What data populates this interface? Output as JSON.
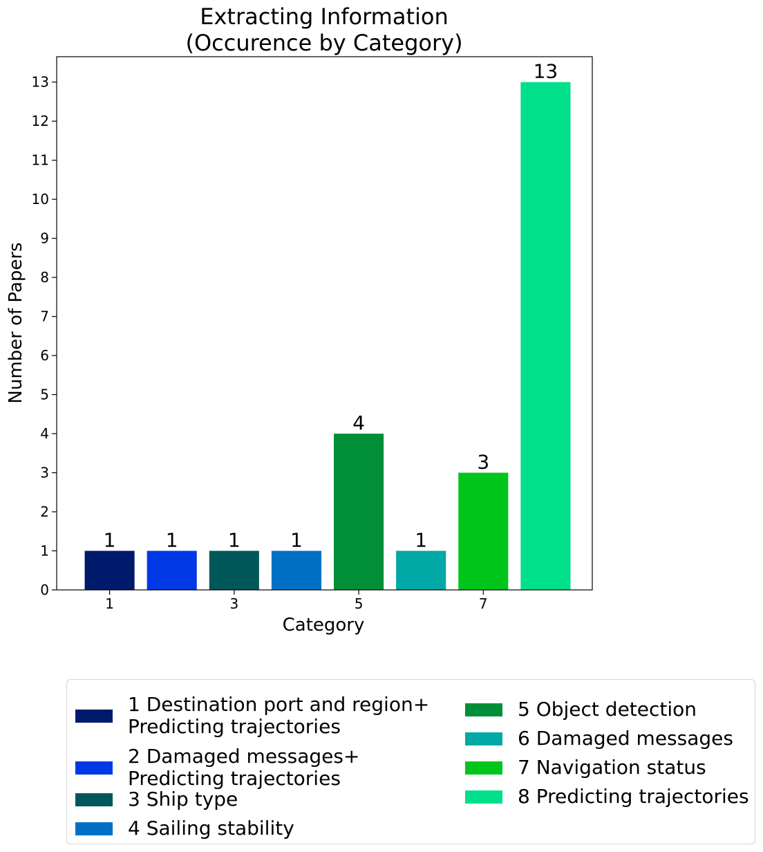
{
  "chart_data": {
    "type": "bar",
    "title": "Extracting Information\n(Occurence by Category)",
    "xlabel": "Category",
    "ylabel": "Number of Papers",
    "categories": [
      1,
      2,
      3,
      4,
      5,
      6,
      7,
      8
    ],
    "values": [
      1,
      1,
      1,
      1,
      4,
      1,
      3,
      13
    ],
    "data_labels": [
      "1",
      "1",
      "1",
      "1",
      "4",
      "1",
      "3",
      "13"
    ],
    "colors": [
      "#001a6b",
      "#0038e6",
      "#00575a",
      "#0070c4",
      "#008f38",
      "#00a8a6",
      "#00c51b",
      "#00e08a"
    ],
    "xticks": [
      1,
      3,
      5,
      7
    ],
    "xtick_labels": [
      "1",
      "3",
      "5",
      "7"
    ],
    "yticks": [
      0,
      1,
      2,
      3,
      4,
      5,
      6,
      7,
      8,
      9,
      10,
      11,
      12,
      13
    ],
    "ytick_labels": [
      "0",
      "1",
      "2",
      "3",
      "4",
      "5",
      "6",
      "7",
      "8",
      "9",
      "10",
      "11",
      "12",
      "13"
    ],
    "ylim": [
      0,
      13.65
    ],
    "xlim": [
      0.15,
      8.75
    ],
    "grid": false,
    "legend_position": "below",
    "legend": [
      {
        "label": "1 Destination port and region+\nPredicting trajectories",
        "color": "#001a6b"
      },
      {
        "label": "2 Damaged messages+\nPredicting trajectories",
        "color": "#0038e6"
      },
      {
        "label": "3 Ship type",
        "color": "#00575a"
      },
      {
        "label": "4 Sailing stability",
        "color": "#0070c4"
      },
      {
        "label": "5 Object detection",
        "color": "#008f38"
      },
      {
        "label": "6 Damaged messages",
        "color": "#00a8a6"
      },
      {
        "label": "7 Navigation status",
        "color": "#00c51b"
      },
      {
        "label": "8 Predicting trajectories",
        "color": "#00e08a"
      }
    ]
  }
}
